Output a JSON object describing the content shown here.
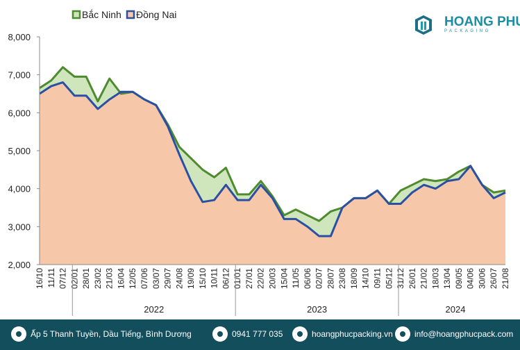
{
  "chart_data": {
    "type": "line",
    "categories": [
      "16/10",
      "11/11",
      "07/12",
      "02/01",
      "28/01",
      "23/02",
      "21/03",
      "16/04",
      "12/05",
      "07/06",
      "03/07",
      "29/07",
      "24/08",
      "19/09",
      "15/10",
      "10/11",
      "06/12",
      "01/01",
      "27/01",
      "22/02",
      "20/03",
      "15/04",
      "11/05",
      "06/06",
      "02/07",
      "28/07",
      "23/08",
      "18/09",
      "14/10",
      "09/11",
      "05/12",
      "31/12",
      "26/01",
      "21/02",
      "18/03",
      "13/04",
      "09/05",
      "04/06",
      "30/06",
      "26/07",
      "21/08"
    ],
    "year_labels": [
      "2022",
      "2023",
      "2024"
    ],
    "series": [
      {
        "name": "Bắc Ninh",
        "color": "#4e8a2e",
        "fill": "#cfe6bd",
        "values": [
          6650,
          6850,
          7200,
          6950,
          6950,
          6300,
          6900,
          6500,
          6550,
          6350,
          6200,
          5700,
          5100,
          4800,
          4500,
          4300,
          4550,
          3850,
          3850,
          4200,
          3800,
          3300,
          3450,
          3300,
          3150,
          3400,
          3500,
          3750,
          3750,
          3950,
          3600,
          3950,
          4100,
          4250,
          4200,
          4250,
          4450,
          4600,
          4100,
          3900,
          3950
        ]
      },
      {
        "name": "Đồng Nai",
        "color": "#2b4fa3",
        "fill": "#f6c8a9",
        "values": [
          6500,
          6700,
          6800,
          6450,
          6450,
          6100,
          6350,
          6550,
          6550,
          6350,
          6200,
          5650,
          4900,
          4200,
          3650,
          3700,
          4100,
          3700,
          3700,
          4100,
          3750,
          3200,
          3200,
          3000,
          2750,
          2750,
          3500,
          3750,
          3750,
          3950,
          3600,
          3600,
          3900,
          4100,
          4000,
          4200,
          4250,
          4600,
          4100,
          3750,
          3900
        ]
      }
    ],
    "ylim": [
      2000,
      8000
    ],
    "yticks": [
      {
        "value": 2000,
        "label": "2,000"
      },
      {
        "value": 3000,
        "label": "3,000"
      },
      {
        "value": 4000,
        "label": "4,000"
      },
      {
        "value": 5000,
        "label": "5,000"
      },
      {
        "value": 6000,
        "label": "6,000"
      },
      {
        "value": 7000,
        "label": "7,000"
      },
      {
        "value": 8000,
        "label": "8,000"
      }
    ],
    "grid": false,
    "legend": "top"
  },
  "logo": {
    "name": "HOANG PHUC",
    "tagline": "PACKAGING"
  },
  "footer": [
    "Ấp 5 Thanh Tuyền, Dầu Tiếng, Bình Dương",
    "0941 777 035",
    "hoangphucpacking.vn",
    "info@hoangphucpack.com"
  ]
}
